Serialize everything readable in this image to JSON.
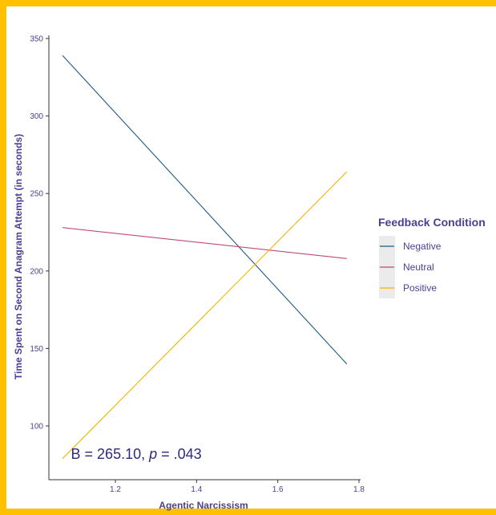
{
  "colors": {
    "frame": "#ffc000",
    "text": "#4b3f8f",
    "Negative": "#1f5a85",
    "Neutral": "#c0487a",
    "Positive": "#f4b400",
    "legend_key_bg": "#ebebeb"
  },
  "chart_data": {
    "type": "line",
    "xlabel": "Agentic Narcissism",
    "ylabel": "Time Spent on Second Anagram Attempt (in seconds)",
    "xlim": [
      1.05,
      1.8
    ],
    "ylim": [
      70,
      352
    ],
    "x_ticks": [
      1.2,
      1.4,
      1.6,
      1.8
    ],
    "x_tick_labels": [
      "1.2",
      "1.4",
      "1.6",
      "1.8"
    ],
    "y_ticks": [
      100,
      150,
      200,
      250,
      300,
      350
    ],
    "y_tick_labels": [
      "100",
      "150",
      "200",
      "250",
      "300",
      "350"
    ],
    "grid": false,
    "legend": {
      "title": "Feedback Condition",
      "position": "right",
      "entries": [
        "Negative",
        "Neutral",
        "Positive"
      ]
    },
    "series": [
      {
        "name": "Negative",
        "x": [
          1.07,
          1.77
        ],
        "y": [
          339,
          140
        ]
      },
      {
        "name": "Neutral",
        "x": [
          1.07,
          1.77
        ],
        "y": [
          228,
          208
        ]
      },
      {
        "name": "Positive",
        "x": [
          1.07,
          1.77
        ],
        "y": [
          79,
          264
        ]
      }
    ],
    "annotation": {
      "prefix": "B = 265.10, ",
      "italic": "p",
      "suffix": " = .043",
      "x": 1.13,
      "y": 82
    }
  }
}
